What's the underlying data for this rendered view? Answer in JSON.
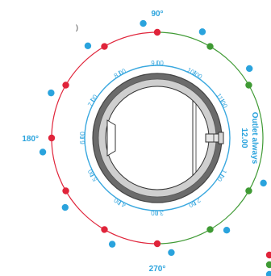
{
  "colors": {
    "red": "#e0243a",
    "green": "#3f9a34",
    "blue": "#2aa3dd",
    "dial_outer": "#6b6b6b",
    "dial_inner": "#cfcfcf",
    "ring": "#3aa8df"
  },
  "degree_labels": {
    "top": "90°",
    "left": "180°",
    "bottom": "270°"
  },
  "outlet": {
    "line1": "Outlet always",
    "line2": "12.00"
  },
  "stray_mark": ")",
  "hours": [
    {
      "label": "12.00",
      "angle": 0
    },
    {
      "label": "1.00",
      "angle": -30
    },
    {
      "label": "2.00",
      "angle": -60
    },
    {
      "label": "3.00",
      "angle": -90
    },
    {
      "label": "4.00",
      "angle": -120
    },
    {
      "label": "5.00",
      "angle": -150
    },
    {
      "label": "6.00",
      "angle": 180
    },
    {
      "label": "7.00",
      "angle": 150
    },
    {
      "label": "8.00",
      "angle": 120
    },
    {
      "label": "9.00",
      "angle": 90
    },
    {
      "label": "10.00",
      "angle": 60
    },
    {
      "label": "11.00",
      "angle": 30
    }
  ],
  "outer_dots": [
    {
      "name": "dot-90",
      "angle": 90,
      "color": "red"
    },
    {
      "name": "dot-60",
      "angle": 60,
      "color": "green"
    },
    {
      "name": "dot-30",
      "angle": 30,
      "color": "green"
    },
    {
      "name": "dot-330",
      "angle": -30,
      "color": "green"
    },
    {
      "name": "dot-300",
      "angle": -60,
      "color": "green"
    },
    {
      "name": "dot-270",
      "angle": -90,
      "color": "red"
    },
    {
      "name": "dot-240",
      "angle": -120,
      "color": "red"
    },
    {
      "name": "dot-210",
      "angle": -150,
      "color": "red"
    },
    {
      "name": "dot-180",
      "angle": 180,
      "color": "red"
    },
    {
      "name": "dot-150",
      "angle": 150,
      "color": "red"
    },
    {
      "name": "dot-120",
      "angle": 120,
      "color": "red"
    }
  ],
  "blue_dots": [
    {
      "name": "blue-dot-90",
      "angle": 90
    },
    {
      "name": "blue-dot-60",
      "angle": 60
    },
    {
      "name": "blue-dot-30",
      "angle": 30
    },
    {
      "name": "blue-dot-330",
      "angle": -30
    },
    {
      "name": "blue-dot-300",
      "angle": -60
    },
    {
      "name": "blue-dot-270",
      "angle": -90
    },
    {
      "name": "blue-dot-240",
      "angle": -120
    },
    {
      "name": "blue-dot-210",
      "angle": -150
    },
    {
      "name": "blue-dot-180",
      "angle": 180
    },
    {
      "name": "blue-dot-150",
      "angle": 150
    },
    {
      "name": "blue-dot-120",
      "angle": 120
    }
  ],
  "legend": [
    {
      "name": "legend-red-dot",
      "color": "red"
    },
    {
      "name": "legend-green-dot",
      "color": "green"
    },
    {
      "name": "legend-blue-dot",
      "color": "blue"
    }
  ]
}
